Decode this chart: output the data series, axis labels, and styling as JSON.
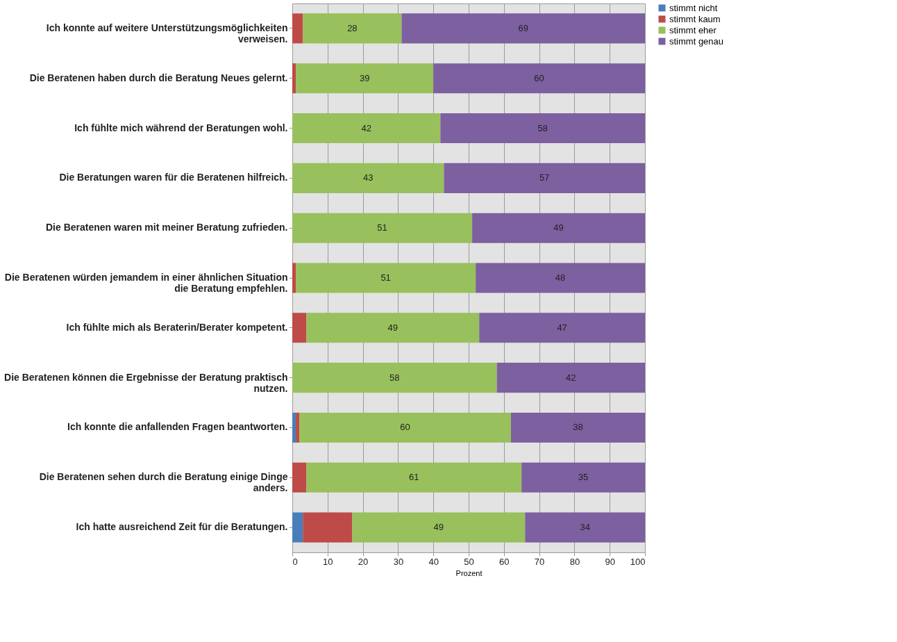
{
  "chart_data": {
    "type": "bar",
    "orientation": "horizontal",
    "stacked": true,
    "categories": [
      "Ich konnte auf weitere Unterstützungsmöglichkeiten verweisen.",
      "Die Beratenen haben durch die Beratung Neues gelernt.",
      "Ich fühlte mich während der Beratungen wohl.",
      "Die Beratungen waren für die Beratenen hilfreich.",
      "Die Beratenen waren mit meiner Beratung zufrieden.",
      "Die Beratenen würden jemandem in einer ähnlichen Situation die Beratung empfehlen.",
      "Ich fühlte mich als Beraterin/Berater kompetent.",
      "Die Beratenen können die Ergebnisse der Beratung praktisch nutzen.",
      "Ich konnte die anfallenden Fragen beantworten.",
      "Die Beratenen sehen durch die Beratung einige Dinge anders.",
      "Ich hatte ausreichend Zeit für die Beratungen."
    ],
    "series": [
      {
        "name": "stimmt nicht",
        "color": "#4a7ebb",
        "values": [
          0,
          0,
          0,
          0,
          0,
          0,
          0,
          0,
          1,
          0,
          3
        ]
      },
      {
        "name": "stimmt kaum",
        "color": "#be4b48",
        "values": [
          3,
          1,
          0,
          0,
          0,
          1,
          4,
          0,
          1,
          4,
          14
        ]
      },
      {
        "name": "stimmt eher",
        "color": "#98c05c",
        "values": [
          28,
          39,
          42,
          43,
          51,
          51,
          49,
          58,
          60,
          61,
          49
        ],
        "value_labels": [
          "28",
          "39",
          "42",
          "43",
          "51",
          "51",
          "49",
          "58",
          "60",
          "61",
          "49"
        ]
      },
      {
        "name": "stimmt genau",
        "color": "#7d60a0",
        "values": [
          69,
          60,
          58,
          57,
          49,
          48,
          47,
          42,
          38,
          35,
          34
        ],
        "value_labels": [
          "69",
          "60",
          "58",
          "57",
          "49",
          "48",
          "47",
          "42",
          "38",
          "35",
          "34"
        ]
      }
    ],
    "xlabel": "Prozent",
    "xlim": [
      0,
      100
    ],
    "xticks": [
      0,
      10,
      20,
      30,
      40,
      50,
      60,
      70,
      80,
      90,
      100
    ],
    "grid": "x",
    "legend": "right"
  }
}
